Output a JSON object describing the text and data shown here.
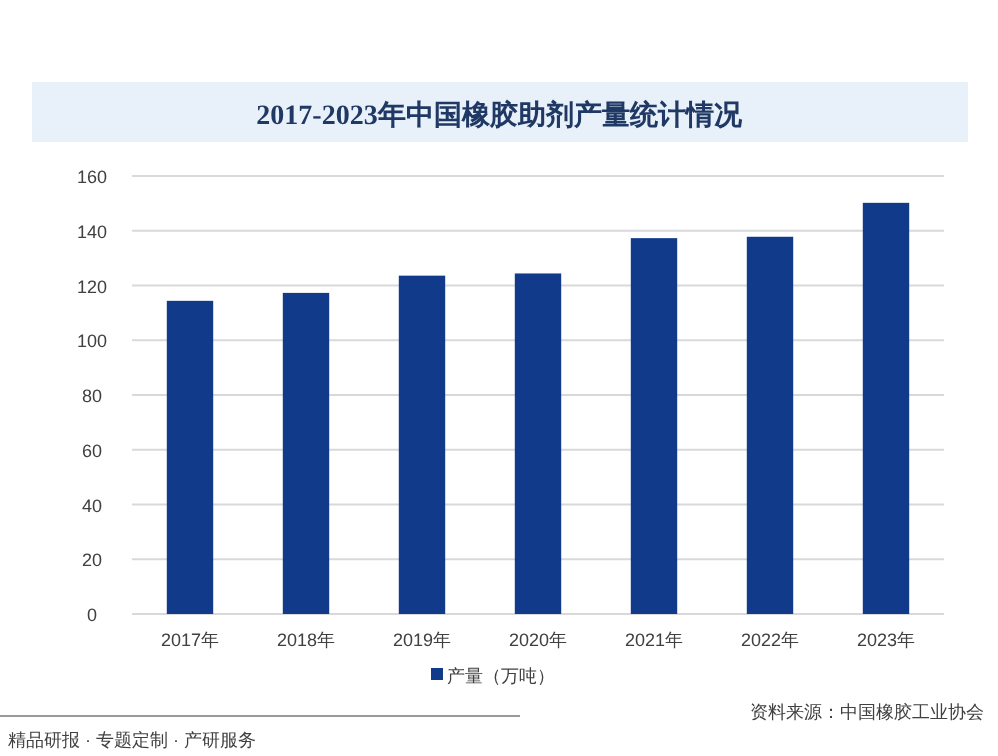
{
  "chart_data": {
    "type": "bar",
    "title": "2017-2023年中国橡胶助剂产量统计情况",
    "categories": [
      "2017年",
      "2018年",
      "2019年",
      "2020年",
      "2021年",
      "2022年",
      "2023年"
    ],
    "series": [
      {
        "name": "产量（万吨）",
        "color": "#123a8a",
        "values": [
          114.4,
          117.3,
          123.6,
          124.4,
          137.3,
          137.8,
          150.2
        ]
      }
    ],
    "ylim": [
      0,
      160
    ],
    "yticks": [
      0,
      20,
      40,
      60,
      80,
      100,
      120,
      140,
      160
    ],
    "grid": "y",
    "legend": "bottom",
    "annotations": [
      "资料来源：中国橡胶工业协会",
      "精品研报 · 专题定制 · 产研服务"
    ]
  }
}
